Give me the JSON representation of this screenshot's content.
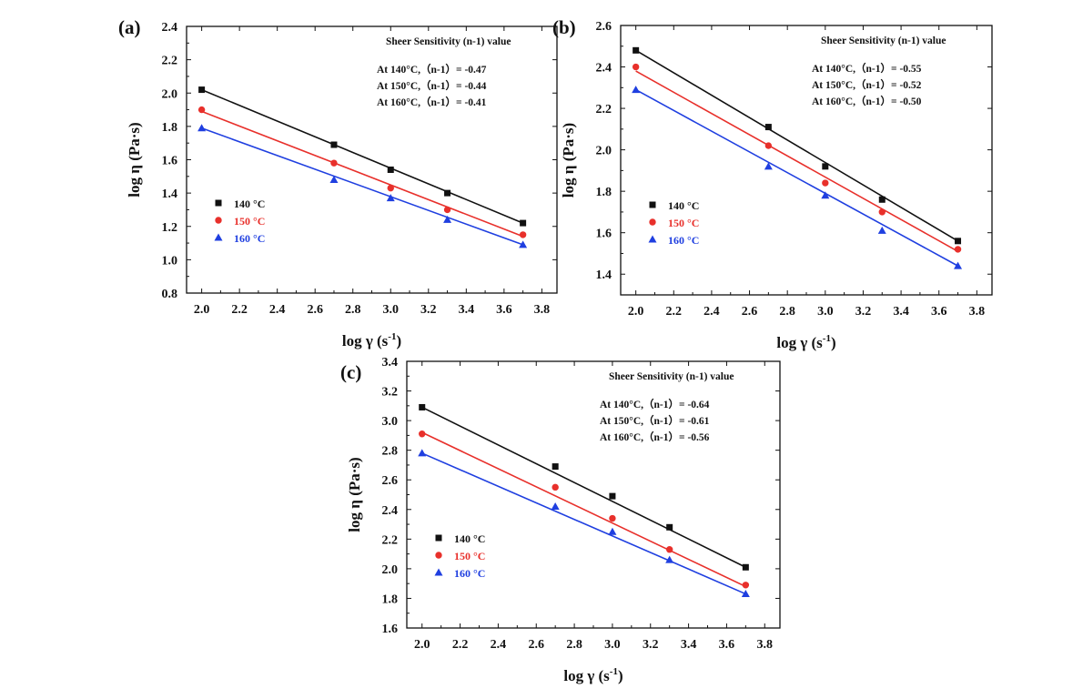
{
  "chart_data": [
    {
      "panel": "(a)",
      "type": "scatter",
      "xlabel": "log γ (s",
      "xlabel_sup": "-1",
      "xlabel_end": ")",
      "ylabel": "log η (Pa·s)",
      "xlim": [
        1.92,
        3.88
      ],
      "ylim": [
        0.8,
        2.4
      ],
      "xticks": [
        "2.0",
        "2.2",
        "2.4",
        "2.6",
        "2.8",
        "3.0",
        "3.2",
        "3.4",
        "3.6",
        "3.8"
      ],
      "yticks": [
        "0.8",
        "1.0",
        "1.2",
        "1.4",
        "1.6",
        "1.8",
        "2.0",
        "2.2",
        "2.4"
      ],
      "annotation_title": "Sheer Sensitivity (n-1) value",
      "annotations": [
        "At 140°C,（n-1）= -0.47",
        "At 150°C,（n-1）= -0.44",
        "At 160°C,（n-1）= -0.41"
      ],
      "series": [
        {
          "name": "140 °C",
          "color": "#111111",
          "marker": "square",
          "x": [
            2.0,
            2.7,
            3.0,
            3.3,
            3.7
          ],
          "y": [
            2.02,
            1.69,
            1.54,
            1.4,
            1.22
          ],
          "fit": [
            2.02,
            1.22
          ]
        },
        {
          "name": "150 °C",
          "color": "#e8302b",
          "marker": "circle",
          "x": [
            2.0,
            2.7,
            3.0,
            3.3,
            3.7
          ],
          "y": [
            1.9,
            1.58,
            1.43,
            1.3,
            1.15
          ],
          "fit": [
            1.89,
            1.14
          ]
        },
        {
          "name": "160 °C",
          "color": "#1f3fe0",
          "marker": "triangle",
          "x": [
            2.0,
            2.7,
            3.0,
            3.3,
            3.7
          ],
          "y": [
            1.79,
            1.48,
            1.37,
            1.24,
            1.09
          ],
          "fit": [
            1.79,
            1.09
          ]
        }
      ]
    },
    {
      "panel": "(b)",
      "type": "scatter",
      "xlabel": "log γ (s",
      "xlabel_sup": "-1",
      "xlabel_end": ")",
      "ylabel": "log η (Pa·s)",
      "xlim": [
        1.92,
        3.88
      ],
      "ylim": [
        1.3,
        2.6
      ],
      "xticks": [
        "2.0",
        "2.2",
        "2.4",
        "2.6",
        "2.8",
        "3.0",
        "3.2",
        "3.4",
        "3.6",
        "3.8"
      ],
      "yticks": [
        "1.4",
        "1.6",
        "1.8",
        "2.0",
        "2.2",
        "2.4",
        "2.6"
      ],
      "annotation_title": "Sheer Sensitivity (n-1) value",
      "annotations": [
        "At 140°C,（n-1）= -0.55",
        "At 150°C,（n-1）= -0.52",
        "At 160°C,（n-1）= -0.50"
      ],
      "series": [
        {
          "name": "140 °C",
          "color": "#111111",
          "marker": "square",
          "x": [
            2.0,
            2.7,
            3.0,
            3.3,
            3.7
          ],
          "y": [
            2.48,
            2.11,
            1.92,
            1.76,
            1.56
          ],
          "fit": [
            2.48,
            1.56
          ]
        },
        {
          "name": "150 °C",
          "color": "#e8302b",
          "marker": "circle",
          "x": [
            2.0,
            2.7,
            3.0,
            3.3,
            3.7
          ],
          "y": [
            2.4,
            2.02,
            1.84,
            1.7,
            1.52
          ],
          "fit": [
            2.38,
            1.51
          ]
        },
        {
          "name": "160 °C",
          "color": "#1f3fe0",
          "marker": "triangle",
          "x": [
            2.0,
            2.7,
            3.0,
            3.3,
            3.7
          ],
          "y": [
            2.29,
            1.92,
            1.78,
            1.61,
            1.44
          ],
          "fit": [
            2.29,
            1.44
          ]
        }
      ]
    },
    {
      "panel": "(c)",
      "type": "scatter",
      "xlabel": "log γ (s",
      "xlabel_sup": "-1",
      "xlabel_end": ")",
      "ylabel": "log η (Pa·s)",
      "xlim": [
        1.92,
        3.88
      ],
      "ylim": [
        1.6,
        3.4
      ],
      "xticks": [
        "2.0",
        "2.2",
        "2.4",
        "2.6",
        "2.8",
        "3.0",
        "3.2",
        "3.4",
        "3.6",
        "3.8"
      ],
      "yticks": [
        "1.6",
        "1.8",
        "2.0",
        "2.2",
        "2.4",
        "2.6",
        "2.8",
        "3.0",
        "3.2",
        "3.4"
      ],
      "annotation_title": "Sheer Sensitivity (n-1) value",
      "annotations": [
        "At 140°C,（n-1）= -0.64",
        "At 150°C,（n-1）= -0.61",
        "At 160°C,（n-1）= -0.56"
      ],
      "series": [
        {
          "name": "140 °C",
          "color": "#111111",
          "marker": "square",
          "x": [
            2.0,
            2.7,
            3.0,
            3.3,
            3.7
          ],
          "y": [
            3.09,
            2.69,
            2.49,
            2.28,
            2.01
          ],
          "fit": [
            3.09,
            2.01
          ]
        },
        {
          "name": "150 °C",
          "color": "#e8302b",
          "marker": "circle",
          "x": [
            2.0,
            2.7,
            3.0,
            3.3,
            3.7
          ],
          "y": [
            2.91,
            2.55,
            2.34,
            2.13,
            1.89
          ],
          "fit": [
            2.92,
            1.88
          ]
        },
        {
          "name": "160 °C",
          "color": "#1f3fe0",
          "marker": "triangle",
          "x": [
            2.0,
            2.7,
            3.0,
            3.3,
            3.7
          ],
          "y": [
            2.78,
            2.42,
            2.25,
            2.06,
            1.83
          ],
          "fit": [
            2.78,
            1.83
          ]
        }
      ]
    }
  ]
}
